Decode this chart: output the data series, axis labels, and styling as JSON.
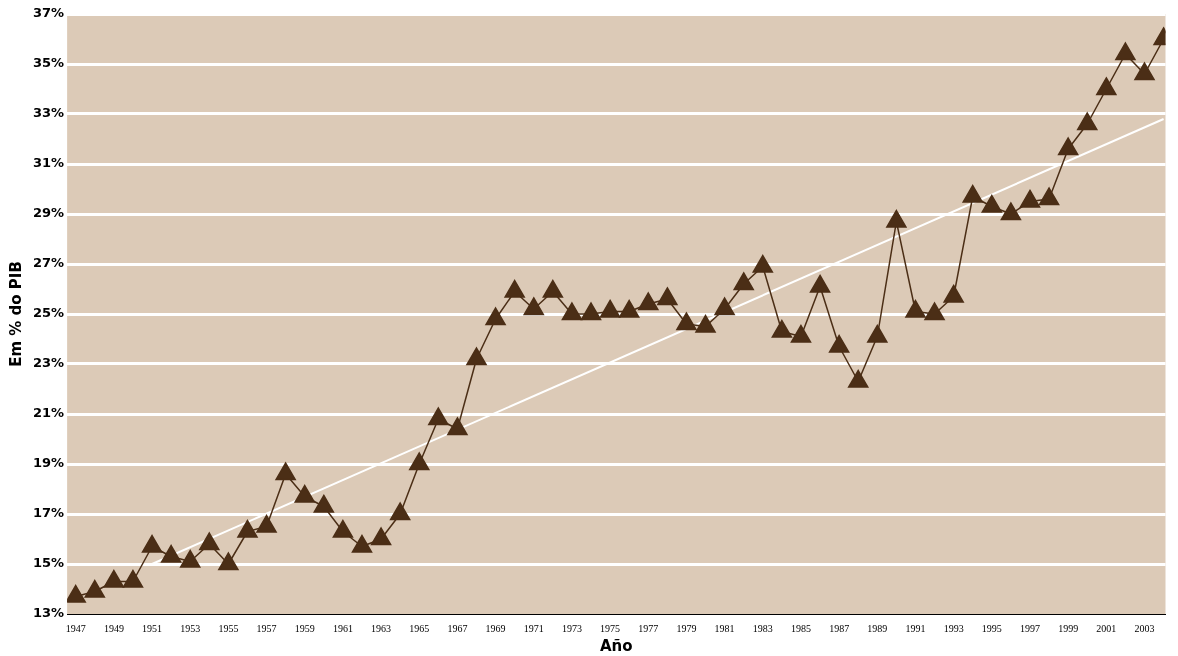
{
  "chart_data": {
    "type": "line",
    "xlabel": "Año",
    "ylabel": "Em % do PIB",
    "categories": [
      "1947",
      null,
      "1949",
      null,
      "1951",
      null,
      "1953",
      null,
      "1955",
      null,
      "1957",
      null,
      "1959",
      null,
      "1961",
      null,
      "1963",
      null,
      "1965",
      null,
      "1967",
      null,
      "1969",
      null,
      "1971",
      null,
      "1973",
      null,
      "1975",
      null,
      "1977",
      null,
      "1979",
      null,
      "1981",
      null,
      "1983",
      null,
      "1985",
      null,
      "1987",
      null,
      "1989",
      null,
      "1991",
      null,
      "1993",
      null,
      "1995",
      null,
      "1997",
      null,
      "1999",
      null,
      "2001",
      null,
      "2003",
      null
    ],
    "series": [
      {
        "color": "#4b2e16",
        "marker": "triangle",
        "values": [
          13.7,
          13.9,
          14.3,
          14.3,
          15.7,
          15.3,
          15.1,
          15.8,
          15.0,
          16.3,
          16.5,
          18.6,
          17.7,
          17.3,
          16.3,
          15.7,
          16.0,
          17.0,
          19.0,
          20.8,
          20.4,
          23.2,
          24.8,
          25.9,
          25.2,
          25.9,
          25.0,
          25.0,
          25.1,
          25.1,
          25.4,
          25.6,
          24.6,
          24.5,
          25.2,
          26.2,
          26.9,
          24.3,
          24.1,
          26.1,
          23.7,
          22.3,
          24.1,
          28.7,
          25.1,
          25.0,
          25.7,
          29.7,
          29.3,
          29.0,
          29.5,
          29.6,
          31.6,
          32.6,
          34.0,
          35.4,
          34.6,
          36.0
        ]
      },
      {
        "type": "line",
        "color": "#ffffff",
        "marker": "none",
        "values": [
          null,
          null,
          null,
          null,
          15.0,
          null,
          null,
          null,
          null,
          null,
          null,
          null,
          null,
          null,
          null,
          null,
          null,
          null,
          null,
          null,
          null,
          null,
          null,
          null,
          null,
          null,
          null,
          null,
          null,
          null,
          null,
          null,
          null,
          null,
          null,
          null,
          null,
          null,
          null,
          null,
          null,
          null,
          null,
          null,
          null,
          null,
          null,
          null,
          null,
          null,
          null,
          null,
          null,
          null,
          null,
          null,
          null,
          32.8
        ]
      }
    ],
    "ylim": [
      13,
      37
    ],
    "yticks": [
      {
        "value": 13,
        "label": "13%"
      },
      {
        "value": 15,
        "label": "15%"
      },
      {
        "value": 17,
        "label": "17%"
      },
      {
        "value": 19,
        "label": "19%"
      },
      {
        "value": 21,
        "label": "21%"
      },
      {
        "value": 23,
        "label": "23%"
      },
      {
        "value": 25,
        "label": "25%"
      },
      {
        "value": 27,
        "label": "27%"
      },
      {
        "value": 29,
        "label": "29%"
      },
      {
        "value": 31,
        "label": "31%"
      },
      {
        "value": 33,
        "label": "33%"
      },
      {
        "value": 35,
        "label": "35%"
      },
      {
        "value": 37,
        "label": "37%"
      }
    ],
    "grid": "y"
  }
}
